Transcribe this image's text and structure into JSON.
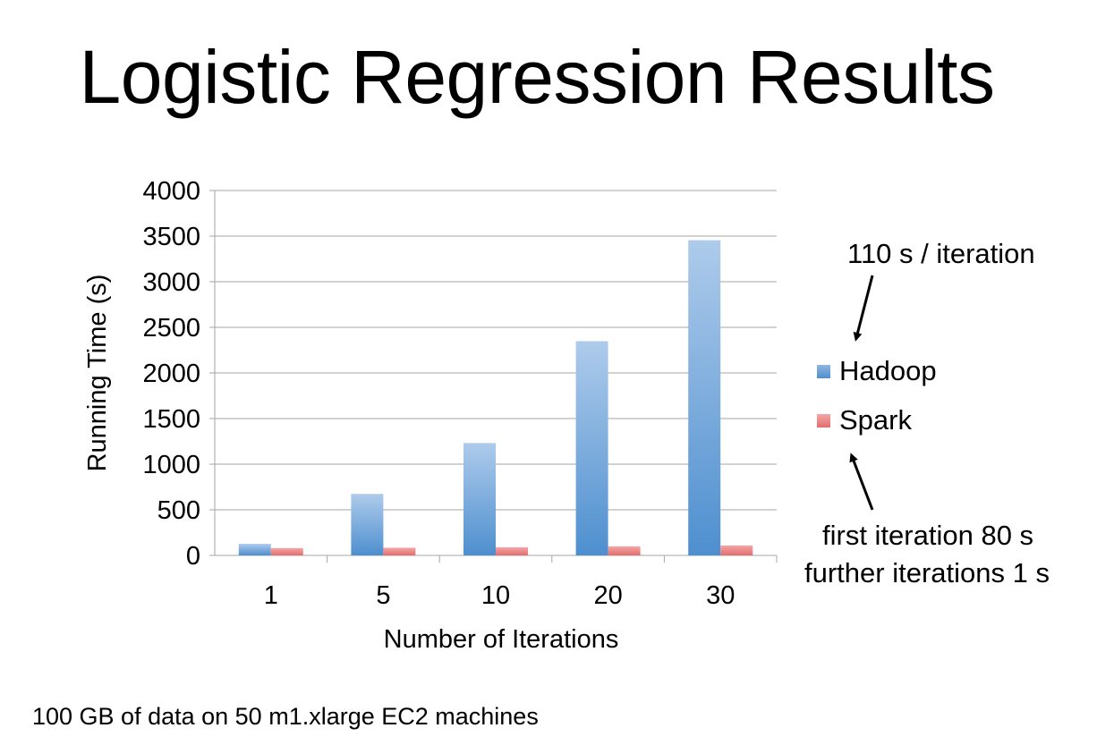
{
  "slide": {
    "title": "Logistic Regression Results",
    "footer": "100 GB of data on 50 m1.xlarge EC2 machines"
  },
  "annotations": {
    "hadoop_note": "110 s / iteration",
    "spark_note_line1": "first iteration 80 s",
    "spark_note_line2": "further iterations 1 s"
  },
  "chart_data": {
    "type": "bar",
    "categories": [
      "1",
      "5",
      "10",
      "20",
      "30"
    ],
    "series": [
      {
        "name": "Hadoop",
        "values": [
          127,
          674,
          1232,
          2348,
          3455
        ],
        "color": "#7aa7d8"
      },
      {
        "name": "Spark",
        "values": [
          80,
          84,
          89,
          99,
          109
        ],
        "color": "#e98383"
      }
    ],
    "xlabel": "Number of Iterations",
    "ylabel": "Running Time (s)",
    "ylim": [
      0,
      4000
    ],
    "yticks": [
      0,
      500,
      1000,
      1500,
      2000,
      2500,
      3000,
      3500,
      4000
    ],
    "grid": true,
    "legend": "right"
  }
}
